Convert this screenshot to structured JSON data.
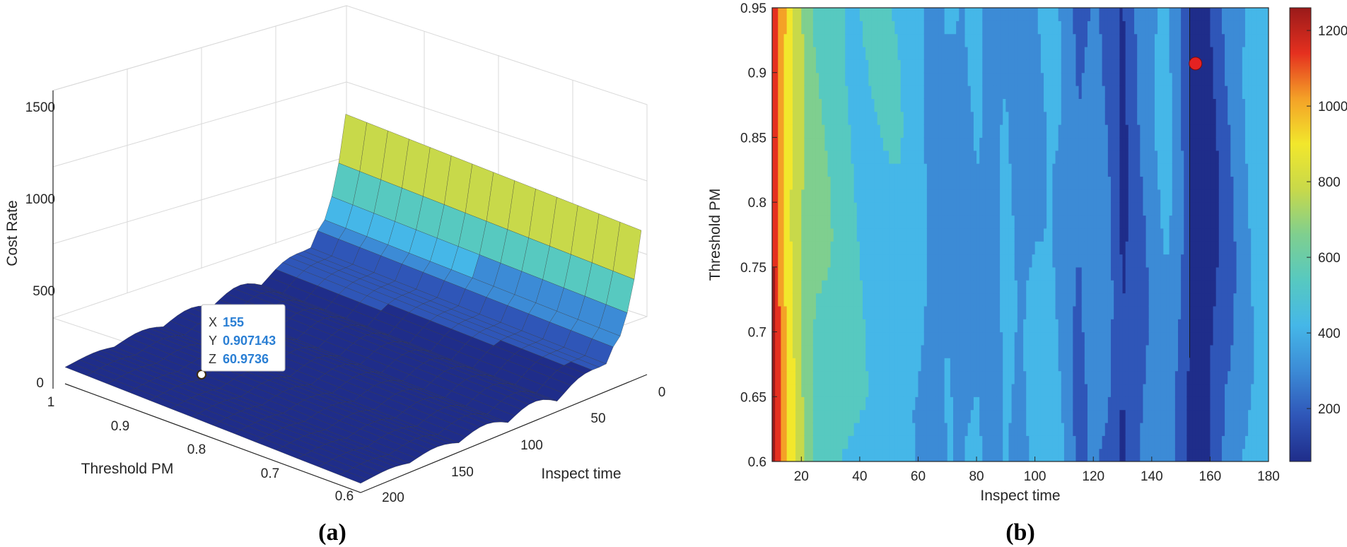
{
  "chart_data": [
    {
      "panel_label": "(a)",
      "type": "surface3d",
      "zlabel": "Cost Rate",
      "xlabel": "Inspect time",
      "ylabel": "Threshold PM",
      "z_ticks": [
        "0",
        "500",
        "1000",
        "1500"
      ],
      "x_ticks": [
        "0",
        "50",
        "100",
        "150",
        "200"
      ],
      "y_ticks": [
        "1",
        "0.9",
        "0.8",
        "0.7",
        "0.6"
      ],
      "x_range": [
        0,
        200
      ],
      "y_range": [
        0.6,
        1
      ],
      "z_range": [
        0,
        1500
      ],
      "surface_color_levels": [
        "#1f2d8a",
        "#2f56b8",
        "#3c8bd6",
        "#45b7e8",
        "#57c9c0",
        "#7fcf8f",
        "#c8d94a",
        "#f2e72c",
        "#f4a127",
        "#e5301f",
        "#9a1a1a"
      ],
      "datatip": {
        "x_label": "X",
        "x_value": "155",
        "y_label": "Y",
        "y_value": "0.907143",
        "z_label": "Z",
        "z_value": "60.9736"
      }
    },
    {
      "panel_label": "(b)",
      "type": "heatmap",
      "xlabel": "Inspect time",
      "ylabel": "Threshold PM",
      "x_ticks": [
        "20",
        "40",
        "60",
        "80",
        "100",
        "120",
        "140",
        "160",
        "180"
      ],
      "y_ticks": [
        "0.6",
        "0.65",
        "0.7",
        "0.75",
        "0.8",
        "0.85",
        "0.9",
        "0.95"
      ],
      "xlim": [
        10,
        180
      ],
      "ylim": [
        0.6,
        0.95
      ],
      "colorbar_ticks": [
        "200",
        "400",
        "600",
        "800",
        "1000",
        "1200"
      ],
      "colorbar_range": [
        60,
        1260
      ],
      "contour_levels_colors": [
        "#1f2d8a",
        "#2f56b8",
        "#3c8bd6",
        "#45b7e8",
        "#57c9c0",
        "#7fcf8f",
        "#c8d94a",
        "#f2e72c",
        "#f4a127",
        "#e5301f",
        "#9a1a1a"
      ],
      "column_values": [
        {
          "x": 10,
          "v": 1180
        },
        {
          "x": 12,
          "v": 1050
        },
        {
          "x": 14,
          "v": 950
        },
        {
          "x": 16,
          "v": 860
        },
        {
          "x": 18,
          "v": 790
        },
        {
          "x": 20,
          "v": 720
        },
        {
          "x": 22,
          "v": 660
        },
        {
          "x": 25,
          "v": 600
        },
        {
          "x": 30,
          "v": 560
        },
        {
          "x": 35,
          "v": 520
        },
        {
          "x": 40,
          "v": 480
        },
        {
          "x": 50,
          "v": 470
        },
        {
          "x": 60,
          "v": 430
        },
        {
          "x": 65,
          "v": 330
        },
        {
          "x": 70,
          "v": 380
        },
        {
          "x": 75,
          "v": 340
        },
        {
          "x": 80,
          "v": 400
        },
        {
          "x": 85,
          "v": 330
        },
        {
          "x": 90,
          "v": 420
        },
        {
          "x": 95,
          "v": 330
        },
        {
          "x": 100,
          "v": 390
        },
        {
          "x": 105,
          "v": 420
        },
        {
          "x": 110,
          "v": 360
        },
        {
          "x": 115,
          "v": 250
        },
        {
          "x": 120,
          "v": 340
        },
        {
          "x": 125,
          "v": 280
        },
        {
          "x": 130,
          "v": 140
        },
        {
          "x": 135,
          "v": 250
        },
        {
          "x": 140,
          "v": 330
        },
        {
          "x": 145,
          "v": 400
        },
        {
          "x": 150,
          "v": 280
        },
        {
          "x": 155,
          "v": 90
        },
        {
          "x": 160,
          "v": 150
        },
        {
          "x": 165,
          "v": 260
        },
        {
          "x": 170,
          "v": 350
        },
        {
          "x": 175,
          "v": 420
        },
        {
          "x": 180,
          "v": 450
        }
      ],
      "marker": {
        "x": 155,
        "y": 0.907,
        "color": "#e52222"
      }
    }
  ]
}
